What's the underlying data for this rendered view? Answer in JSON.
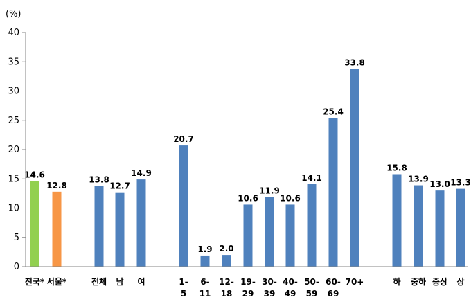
{
  "chart_data": {
    "type": "bar",
    "unit_label": "(%)",
    "ylim": [
      0,
      40
    ],
    "y_ticks": [
      "0",
      "5",
      "10",
      "15",
      "20",
      "25",
      "30",
      "35",
      "40"
    ],
    "grid": false,
    "legend": "none",
    "colors": {
      "green": "#92D050",
      "orange": "#F79646",
      "blue": "#4F81BD",
      "axis": "#868686"
    },
    "bars": [
      {
        "label": "전국*",
        "value": 14.6,
        "value_label": "14.6",
        "color": "green"
      },
      {
        "label": "서울*",
        "value": 12.8,
        "value_label": "12.8",
        "color": "orange"
      },
      {
        "label": "전체",
        "value": 13.8,
        "value_label": "13.8",
        "color": "blue"
      },
      {
        "label": "남",
        "value": 12.7,
        "value_label": "12.7",
        "color": "blue"
      },
      {
        "label": "여",
        "value": 14.9,
        "value_label": "14.9",
        "color": "blue"
      },
      {
        "label": "1-\n5",
        "value": 20.7,
        "value_label": "20.7",
        "color": "blue"
      },
      {
        "label": "6-\n11",
        "value": 1.9,
        "value_label": "1.9",
        "color": "blue"
      },
      {
        "label": "12-\n18",
        "value": 2.0,
        "value_label": "2.0",
        "color": "blue"
      },
      {
        "label": "19-\n29",
        "value": 10.6,
        "value_label": "10.6",
        "color": "blue"
      },
      {
        "label": "30-\n39",
        "value": 11.9,
        "value_label": "11.9",
        "color": "blue"
      },
      {
        "label": "40-\n49",
        "value": 10.6,
        "value_label": "10.6",
        "color": "blue"
      },
      {
        "label": "50-\n59",
        "value": 14.1,
        "value_label": "14.1",
        "color": "blue"
      },
      {
        "label": "60-\n69",
        "value": 25.4,
        "value_label": "25.4",
        "color": "blue"
      },
      {
        "label": "70+",
        "value": 33.8,
        "value_label": "33.8",
        "color": "blue"
      },
      {
        "label": "하",
        "value": 15.8,
        "value_label": "15.8",
        "color": "blue"
      },
      {
        "label": "중하",
        "value": 13.9,
        "value_label": "13.9",
        "color": "blue"
      },
      {
        "label": "중상",
        "value": 13.0,
        "value_label": "13.0",
        "color": "blue"
      },
      {
        "label": "상",
        "value": 13.3,
        "value_label": "13.3",
        "color": "blue"
      }
    ]
  }
}
